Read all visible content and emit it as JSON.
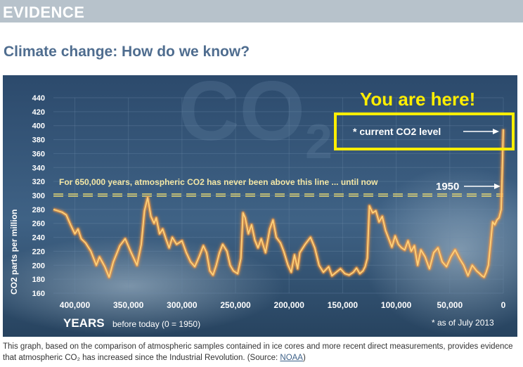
{
  "section": {
    "label": "EVIDENCE"
  },
  "page": {
    "title": "Climate change: How do we know?"
  },
  "caption": {
    "text": "This graph, based on the comparison of atmospheric samples contained in ice cores and more recent direct measurements, provides evidence that atmospheric CO₂ has increased since the Industrial Revolution. (Source: ",
    "link": "NOAA",
    "suffix": ")"
  },
  "chart_data": {
    "type": "line",
    "watermark": "CO2",
    "ylabel": "CO2 parts per million",
    "xlabel_main": "YEARS",
    "xlabel_sub": "before today (0 = 1950)",
    "footnote": "* as of July 2013",
    "callout": "You are here!",
    "current_label": "* current CO2 level",
    "threshold_label": "For 650,000 years, atmospheric CO2 has never been above this line ... until now",
    "marker_1950": "1950",
    "threshold_value": 300,
    "ylim": [
      160,
      440
    ],
    "yticks": [
      160,
      180,
      200,
      220,
      240,
      260,
      280,
      300,
      320,
      340,
      360,
      380,
      400,
      420,
      440
    ],
    "xlim": [
      420000,
      0
    ],
    "xticks": [
      {
        "value": 400000,
        "label": "400,000"
      },
      {
        "value": 350000,
        "label": "350,000"
      },
      {
        "value": 300000,
        "label": "300,000"
      },
      {
        "value": 250000,
        "label": "250,000"
      },
      {
        "value": 200000,
        "label": "200,000"
      },
      {
        "value": 150000,
        "label": "150,000"
      },
      {
        "value": 100000,
        "label": "100,000"
      },
      {
        "value": 50000,
        "label": "50,000"
      },
      {
        "value": 0,
        "label": "0"
      }
    ],
    "series": [
      {
        "x": [
          420000,
          416000,
          412000,
          408000,
          404000,
          400000,
          397000,
          394000,
          390000,
          385000,
          380000,
          377000,
          372000,
          368000,
          364000,
          358000,
          353000,
          348000,
          345000,
          342000,
          338000,
          335000,
          332000,
          329000,
          326000,
          324000,
          321000,
          318000,
          315000,
          312000,
          309000,
          305000,
          300000,
          296000,
          292000,
          288000,
          284000,
          280000,
          277000,
          274000,
          271000,
          268000,
          265000,
          262000,
          258000,
          255000,
          252000,
          248000,
          245000,
          243000,
          241000,
          238000,
          235000,
          232000,
          229000,
          226000,
          222000,
          218000,
          215000,
          212000,
          208000,
          205000,
          201000,
          198000,
          195000,
          192000,
          190000,
          185000,
          180000,
          176000,
          172000,
          168000,
          163000,
          160000,
          156000,
          152000,
          148000,
          144000,
          140000,
          137000,
          134000,
          131000,
          129000,
          127000,
          125000,
          122000,
          119000,
          116000,
          113000,
          110000,
          107000,
          104000,
          101000,
          98000,
          95000,
          92000,
          89000,
          86000,
          83000,
          80000,
          77000,
          73000,
          69000,
          65000,
          61000,
          57000,
          53000,
          49000,
          45000,
          41000,
          37000,
          33000,
          29000,
          25000,
          22000,
          20000,
          18000,
          16000,
          14000,
          12000,
          10000,
          8000,
          6000,
          4000,
          2000,
          0
        ],
        "values": [
          280,
          278,
          276,
          272,
          258,
          245,
          252,
          238,
          232,
          220,
          200,
          212,
          198,
          183,
          205,
          228,
          238,
          220,
          210,
          200,
          230,
          278,
          297,
          270,
          260,
          268,
          245,
          252,
          238,
          225,
          240,
          230,
          235,
          218,
          205,
          198,
          212,
          228,
          218,
          192,
          186,
          200,
          218,
          230,
          220,
          200,
          192,
          188,
          210,
          275,
          268,
          245,
          258,
          236,
          225,
          238,
          218,
          252,
          265,
          240,
          232,
          220,
          200,
          190,
          215,
          195,
          218,
          230,
          240,
          225,
          200,
          190,
          198,
          185,
          190,
          195,
          188,
          186,
          190,
          196,
          188,
          192,
          198,
          210,
          285,
          275,
          278,
          262,
          270,
          250,
          238,
          226,
          242,
          230,
          225,
          222,
          235,
          220,
          228,
          200,
          222,
          212,
          195,
          218,
          225,
          205,
          198,
          212,
          222,
          210,
          200,
          185,
          200,
          192,
          188,
          185,
          183,
          190,
          200,
          230,
          262,
          258,
          265,
          268,
          280,
          395
        ]
      }
    ]
  }
}
